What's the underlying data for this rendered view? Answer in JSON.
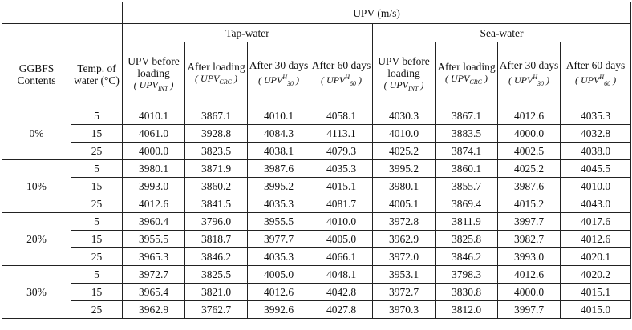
{
  "table": {
    "group_title": "UPV  (m/s)",
    "subgroups": [
      "Tap-water",
      "Sea-water"
    ],
    "col_contents": "GGBFS Contents",
    "col_temp": "Temp. of water (°C)",
    "sub_headers": [
      {
        "title": "UPV before loading",
        "sym": "UPV",
        "sub": "INT",
        "sup": ""
      },
      {
        "title": "After loading",
        "sym": "UPV",
        "sub": "CRC",
        "sup": ""
      },
      {
        "title": "After 30 days",
        "sym": "UPV",
        "sub": "30",
        "sup": "H"
      },
      {
        "title": "After 60 days",
        "sym": "UPV",
        "sub": "60",
        "sup": "H"
      },
      {
        "title": "UPV before loading",
        "sym": "UPV",
        "sub": "INT",
        "sup": ""
      },
      {
        "title": "After loading",
        "sym": "UPV",
        "sub": "CRC",
        "sup": ""
      },
      {
        "title": "After 30 days",
        "sym": "UPV",
        "sub": "30",
        "sup": "H"
      },
      {
        "title": "After 60 days",
        "sym": "UPV",
        "sub": "60",
        "sup": "H"
      }
    ],
    "groups": [
      {
        "content": "0%",
        "rows": [
          {
            "temp": "5",
            "values": [
              "4010.1",
              "3867.1",
              "4010.1",
              "4058.1",
              "4030.3",
              "3867.1",
              "4012.6",
              "4035.3"
            ]
          },
          {
            "temp": "15",
            "values": [
              "4061.0",
              "3928.8",
              "4084.3",
              "4113.1",
              "4010.0",
              "3883.5",
              "4000.0",
              "4032.8"
            ]
          },
          {
            "temp": "25",
            "values": [
              "4000.0",
              "3823.5",
              "4038.1",
              "4079.3",
              "4025.2",
              "3874.1",
              "4002.5",
              "4038.0"
            ]
          }
        ]
      },
      {
        "content": "10%",
        "rows": [
          {
            "temp": "5",
            "values": [
              "3980.1",
              "3871.9",
              "3987.6",
              "4035.3",
              "3995.2",
              "3860.1",
              "4025.2",
              "4045.5"
            ]
          },
          {
            "temp": "15",
            "values": [
              "3993.0",
              "3860.2",
              "3995.2",
              "4015.1",
              "3980.1",
              "3855.7",
              "3987.6",
              "4010.0"
            ]
          },
          {
            "temp": "25",
            "values": [
              "4012.6",
              "3841.5",
              "4035.3",
              "4081.7",
              "4005.1",
              "3869.4",
              "4015.2",
              "4043.0"
            ]
          }
        ]
      },
      {
        "content": "20%",
        "rows": [
          {
            "temp": "5",
            "values": [
              "3960.4",
              "3796.0",
              "3955.5",
              "4010.0",
              "3972.8",
              "3811.9",
              "3997.7",
              "4017.6"
            ]
          },
          {
            "temp": "15",
            "values": [
              "3955.5",
              "3818.7",
              "3977.7",
              "4005.0",
              "3962.9",
              "3825.8",
              "3982.7",
              "4012.6"
            ]
          },
          {
            "temp": "25",
            "values": [
              "3965.3",
              "3846.2",
              "4035.3",
              "4066.1",
              "3972.0",
              "3846.2",
              "3993.0",
              "4020.1"
            ]
          }
        ]
      },
      {
        "content": "30%",
        "rows": [
          {
            "temp": "5",
            "values": [
              "3972.7",
              "3825.5",
              "4005.0",
              "4048.1",
              "3953.1",
              "3798.3",
              "4012.6",
              "4020.2"
            ]
          },
          {
            "temp": "15",
            "values": [
              "3965.4",
              "3821.0",
              "4012.6",
              "4042.8",
              "3972.7",
              "3830.8",
              "4000.0",
              "4015.1"
            ]
          },
          {
            "temp": "25",
            "values": [
              "3962.9",
              "3762.7",
              "3992.6",
              "4027.8",
              "3970.3",
              "3812.0",
              "3997.7",
              "4015.0"
            ]
          }
        ]
      }
    ]
  }
}
